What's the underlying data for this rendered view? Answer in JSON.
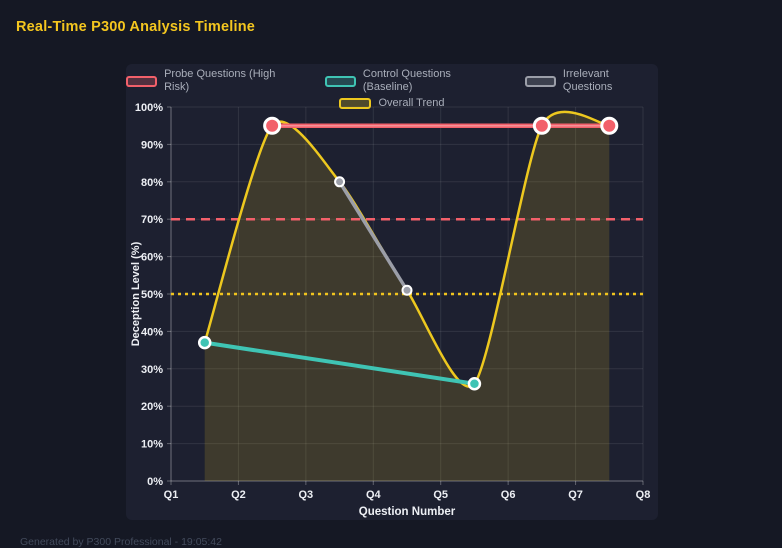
{
  "page": {
    "title": "Real-Time P300 Analysis Timeline",
    "footer": "Generated by P300 Professional - 19:05:42"
  },
  "colors": {
    "page_bg": "#151824",
    "panel_bg": "#1d2030",
    "title": "#f4c61f",
    "grid": "rgba(255,255,255,0.09)",
    "axis": "rgba(255,255,255,0.30)",
    "tick_text": "#edeff4",
    "legend_text": "#a9aeba",
    "footer_text": "#434b5c",
    "marker_ring": "#ffffff"
  },
  "chart_data": {
    "type": "line",
    "title": "Real-Time P300 Analysis Timeline",
    "xlabel": "Question Number",
    "ylabel": "Deception Level (%)",
    "x_ticks": [
      "Q1",
      "Q2",
      "Q3",
      "Q4",
      "Q5",
      "Q6",
      "Q7",
      "Q8"
    ],
    "x_range": [
      1,
      8
    ],
    "y_ticks": [
      "0%",
      "10%",
      "20%",
      "30%",
      "40%",
      "50%",
      "60%",
      "70%",
      "80%",
      "90%",
      "100%"
    ],
    "ylim": [
      0,
      100
    ],
    "grid": true,
    "legend_position": "top",
    "series": [
      {
        "name": "Probe Questions (High Risk)",
        "color": "#f2606a",
        "points": [
          [
            2.5,
            95
          ],
          [
            6.5,
            95
          ],
          [
            7.5,
            95
          ]
        ],
        "line_width": 4.5,
        "marker_radius": 7.5,
        "marker_ring_width": 3,
        "emphasis_core": true
      },
      {
        "name": "Control Questions (Baseline)",
        "color": "#3fc4b4",
        "points": [
          [
            1.5,
            37
          ],
          [
            5.5,
            26
          ]
        ],
        "line_width": 4,
        "marker_radius": 5.5,
        "marker_ring_width": 2.5
      },
      {
        "name": "Irrelevant Questions",
        "color": "#9b9ea8",
        "points": [
          [
            3.5,
            80
          ],
          [
            4.5,
            51
          ]
        ],
        "line_width": 3.5,
        "marker_radius": 4.5,
        "marker_ring_width": 2
      },
      {
        "name": "Overall Trend",
        "color": "#edc81f",
        "points": [
          [
            1.5,
            37
          ],
          [
            2.5,
            95
          ],
          [
            3.5,
            80
          ],
          [
            4.5,
            51
          ],
          [
            5.5,
            26
          ],
          [
            6.5,
            95
          ],
          [
            7.5,
            95
          ]
        ],
        "line_width": 2.5,
        "smooth": true,
        "fill": true,
        "fill_color": "rgba(237,200,31,0.16)",
        "markers": false
      }
    ],
    "thresholds": [
      {
        "y": 70,
        "color": "#f2606a",
        "dash": "9 6",
        "width": 2.5
      },
      {
        "y": 50,
        "color": "#f0c41e",
        "dash": "3 4",
        "width": 2.5
      }
    ]
  }
}
